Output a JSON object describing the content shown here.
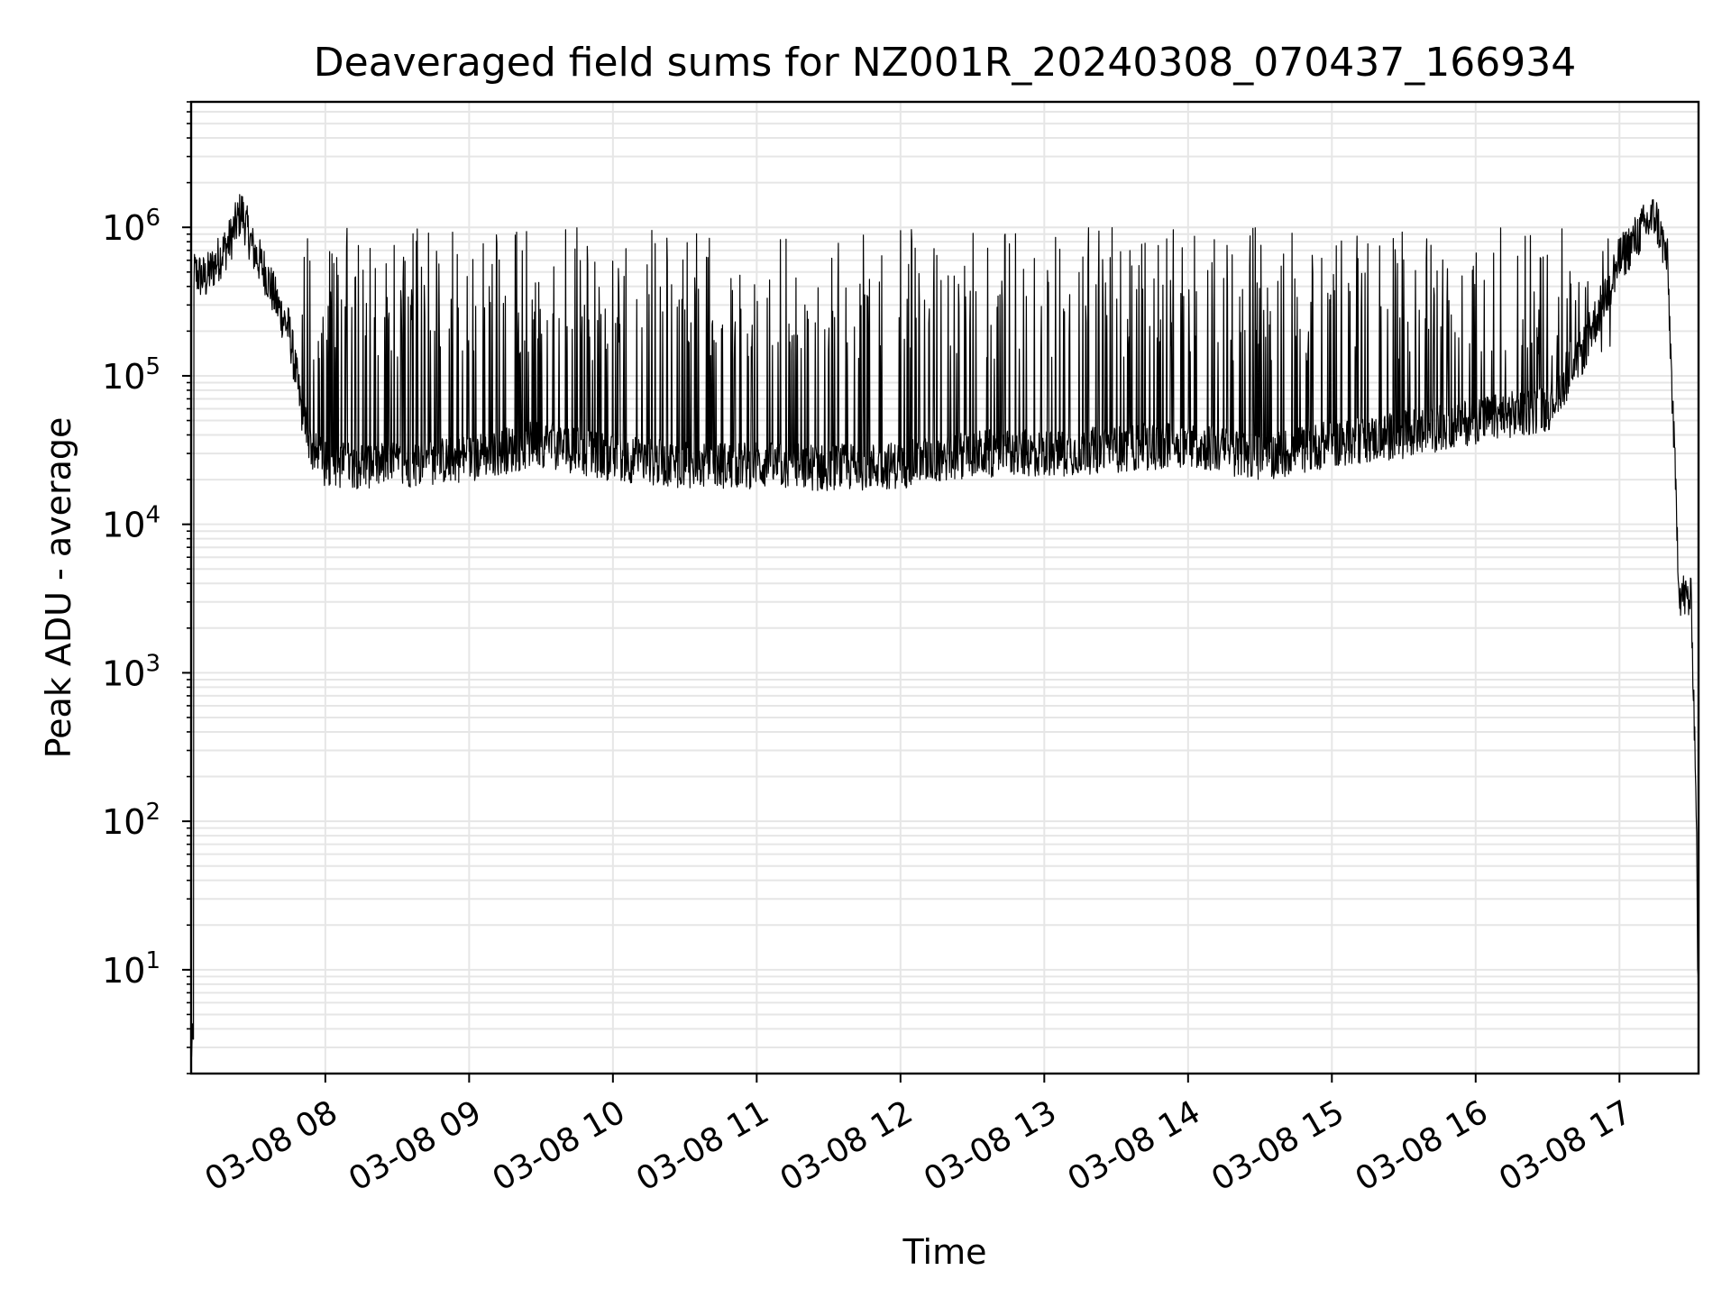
{
  "chart_data": {
    "type": "line",
    "title": "Deaveraged field sums for NZ001R_20240308_070437_166934",
    "xlabel": "Time",
    "ylabel": "Peak ADU - average",
    "y_scale": "log",
    "ylim": [
      2.0,
      7000000
    ],
    "xlim": [
      "2024-03-08T07:04",
      "2024-03-08T17:33"
    ],
    "grid": true,
    "legend": "none",
    "line_color": "#000000",
    "x_ticks": [
      {
        "value": "2024-03-08T08:00",
        "label": "03-08 08"
      },
      {
        "value": "2024-03-08T09:00",
        "label": "03-08 09"
      },
      {
        "value": "2024-03-08T10:00",
        "label": "03-08 10"
      },
      {
        "value": "2024-03-08T11:00",
        "label": "03-08 11"
      },
      {
        "value": "2024-03-08T12:00",
        "label": "03-08 12"
      },
      {
        "value": "2024-03-08T13:00",
        "label": "03-08 13"
      },
      {
        "value": "2024-03-08T14:00",
        "label": "03-08 14"
      },
      {
        "value": "2024-03-08T15:00",
        "label": "03-08 15"
      },
      {
        "value": "2024-03-08T16:00",
        "label": "03-08 16"
      },
      {
        "value": "2024-03-08T17:00",
        "label": "03-08 17"
      }
    ],
    "y_ticks": [
      {
        "value": 10,
        "base": "10",
        "exp": "1"
      },
      {
        "value": 100,
        "base": "10",
        "exp": "2"
      },
      {
        "value": 1000,
        "base": "10",
        "exp": "3"
      },
      {
        "value": 10000,
        "base": "10",
        "exp": "4"
      },
      {
        "value": 100000,
        "base": "10",
        "exp": "5"
      },
      {
        "value": 1000000,
        "base": "10",
        "exp": "6"
      }
    ],
    "series": [
      {
        "points": [
          [
            "2024-03-08T07:05",
            500000
          ],
          [
            "2024-03-08T07:10",
            450000
          ],
          [
            "2024-03-08T07:15",
            600000
          ],
          [
            "2024-03-08T07:20",
            800000
          ],
          [
            "2024-03-08T07:25",
            1300000
          ],
          [
            "2024-03-08T07:30",
            700000
          ],
          [
            "2024-03-08T07:35",
            500000
          ],
          [
            "2024-03-08T07:40",
            300000
          ],
          [
            "2024-03-08T07:45",
            200000
          ],
          [
            "2024-03-08T07:50",
            60000
          ],
          [
            "2024-03-08T07:55",
            30000
          ],
          [
            "2024-03-08T08:00",
            25000
          ],
          [
            "2024-03-08T08:30",
            25000
          ],
          [
            "2024-03-08T09:00",
            28000
          ],
          [
            "2024-03-08T09:30",
            35000
          ],
          [
            "2024-03-08T10:00",
            28000
          ],
          [
            "2024-03-08T10:30",
            25000
          ],
          [
            "2024-03-08T11:00",
            25000
          ],
          [
            "2024-03-08T11:30",
            24000
          ],
          [
            "2024-03-08T12:00",
            25000
          ],
          [
            "2024-03-08T12:30",
            30000
          ],
          [
            "2024-03-08T13:00",
            30000
          ],
          [
            "2024-03-08T13:30",
            32000
          ],
          [
            "2024-03-08T14:00",
            35000
          ],
          [
            "2024-03-08T14:30",
            28000
          ],
          [
            "2024-03-08T15:00",
            35000
          ],
          [
            "2024-03-08T15:30",
            40000
          ],
          [
            "2024-03-08T16:00",
            50000
          ],
          [
            "2024-03-08T16:30",
            60000
          ],
          [
            "2024-03-08T16:45",
            150000
          ],
          [
            "2024-03-08T17:00",
            600000
          ],
          [
            "2024-03-08T17:10",
            1000000
          ],
          [
            "2024-03-08T17:15",
            1200000
          ],
          [
            "2024-03-08T17:20",
            600000
          ],
          [
            "2024-03-08T17:25",
            3500
          ],
          [
            "2024-03-08T17:30",
            3000
          ],
          [
            "2024-03-08T17:32",
            150
          ],
          [
            "2024-03-08T17:33",
            3
          ]
        ],
        "spike_envelope": {
          "low": 15000,
          "high": 1000000,
          "from": "2024-03-08T07:50",
          "to": "2024-03-08T17:00"
        }
      }
    ]
  }
}
